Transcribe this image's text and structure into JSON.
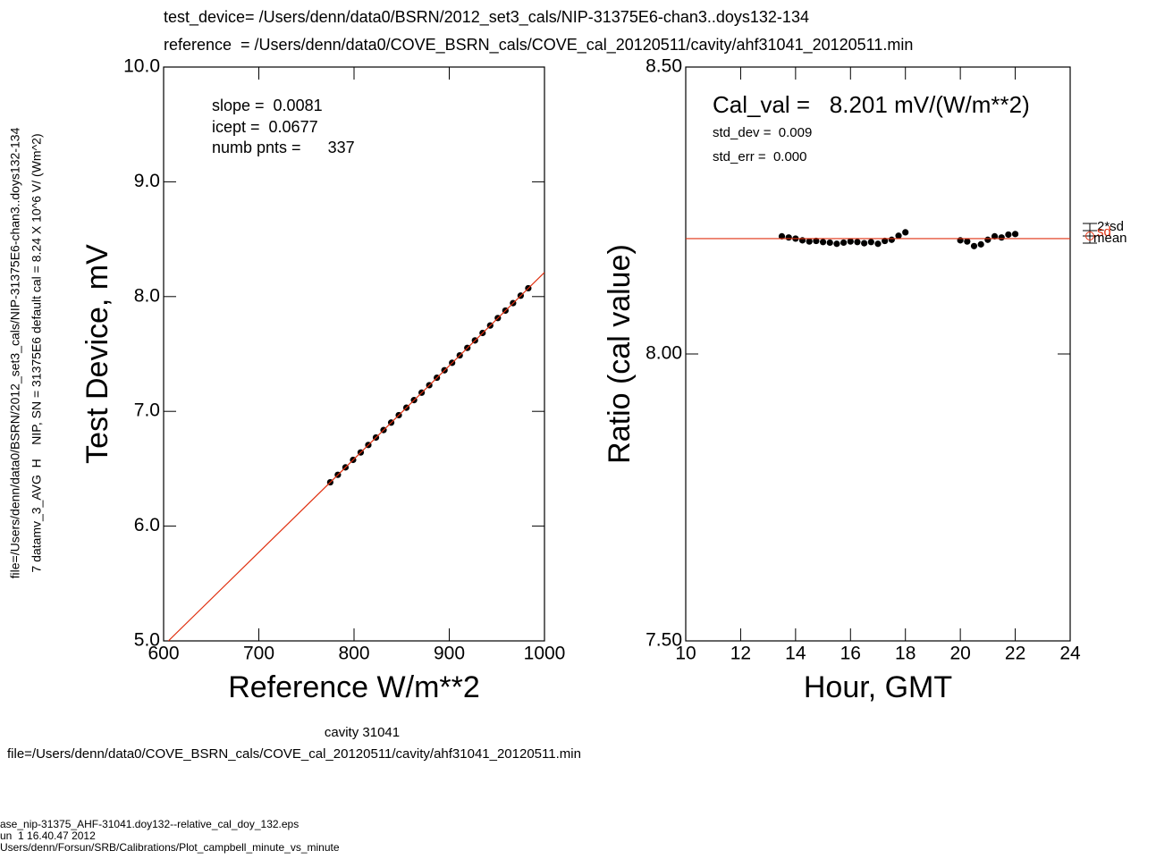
{
  "header": {
    "test_device": "test_device= /Users/denn/data0/BSRN/2012_set3_cals/NIP-31375E6-chan3..doys132-134",
    "reference": "reference  = /Users/denn/data0/COVE_BSRN_cals/COVE_cal_20120511/cavity/ahf31041_20120511.min"
  },
  "side_text": [
    "file=/Users/denn/data0/BSRN/2012_set3_cals/NIP-31375E6-chan3..doys132-134",
    "7 datamv_3_AVG  H    NIP, SN = 31375E6 default cal = 8.24 X 10^6 V/ (Wm^2)"
  ],
  "chart_data": [
    {
      "type": "scatter",
      "xlabel": "Reference W/m**2",
      "ylabel": "Test Device, mV",
      "xlim": [
        600,
        1000
      ],
      "ylim": [
        5,
        10
      ],
      "xticks": [
        600,
        700,
        800,
        900,
        1000
      ],
      "yticks": [
        {
          "value": 5,
          "label": "5.0"
        },
        {
          "value": 6,
          "label": "6.0"
        },
        {
          "value": 7,
          "label": "7.0"
        },
        {
          "value": 8,
          "label": "8.0"
        },
        {
          "value": 9,
          "label": "9.0"
        },
        {
          "value": 10,
          "label": "10.0"
        }
      ],
      "annotations": [
        "slope =  0.0081",
        "icept =  0.0677",
        "numb pnts =      337"
      ],
      "series": [
        {
          "style": "markers",
          "color": "#000000",
          "x": [
            775,
            783,
            791,
            799,
            807,
            815,
            823,
            831,
            839,
            847,
            855,
            863,
            871,
            879,
            887,
            895,
            903,
            911,
            919,
            927,
            935,
            943,
            951,
            959,
            967,
            975,
            983
          ],
          "values": [
            6.382,
            6.447,
            6.512,
            6.577,
            6.642,
            6.707,
            6.772,
            6.837,
            6.902,
            6.967,
            7.032,
            7.098,
            7.163,
            7.228,
            7.293,
            7.358,
            7.423,
            7.488,
            7.553,
            7.618,
            7.683,
            7.748,
            7.813,
            7.878,
            7.943,
            8.008,
            8.073
          ]
        },
        {
          "style": "line",
          "color": "#e03010",
          "x": [
            605,
            1000
          ],
          "values": [
            5.0,
            8.21
          ]
        }
      ]
    },
    {
      "type": "scatter",
      "xlabel": "Hour, GMT",
      "ylabel": "Ratio (cal value)",
      "xlim": [
        10,
        24
      ],
      "ylim": [
        7.5,
        8.5
      ],
      "xticks": [
        10,
        12,
        14,
        16,
        18,
        20,
        22,
        24
      ],
      "yticks": [
        {
          "value": 7.5,
          "label": "7.50"
        },
        {
          "value": 8.0,
          "label": "8.00"
        },
        {
          "value": 8.5,
          "label": "8.50"
        }
      ],
      "annotations": [
        "Cal_val =   8.201 mV/(W/m**2)",
        "std_dev =  0.009",
        "std_err =  0.000"
      ],
      "markers": [
        "2*sd",
        "sd",
        "mean"
      ],
      "series": [
        {
          "style": "markers",
          "color": "#000000",
          "x": [
            13.5,
            13.75,
            14,
            14.25,
            14.5,
            14.75,
            15,
            15.25,
            15.5,
            15.75,
            16,
            16.25,
            16.5,
            16.75,
            17,
            17.25,
            17.5,
            17.75,
            18,
            20,
            20.25,
            20.5,
            20.75,
            21,
            21.25,
            21.5,
            21.75,
            22
          ],
          "values": [
            8.205,
            8.203,
            8.201,
            8.198,
            8.196,
            8.197,
            8.195,
            8.194,
            8.192,
            8.194,
            8.196,
            8.195,
            8.193,
            8.195,
            8.192,
            8.197,
            8.199,
            8.206,
            8.212,
            8.198,
            8.196,
            8.188,
            8.191,
            8.199,
            8.205,
            8.203,
            8.208,
            8.209
          ]
        },
        {
          "style": "line",
          "color": "#e03010",
          "x": [
            10,
            24
          ],
          "values": [
            8.201,
            8.201
          ]
        }
      ]
    }
  ],
  "footer": {
    "caption": "cavity 31041",
    "file": "file=/Users/denn/data0/COVE_BSRN_cals/COVE_cal_20120511/cavity/ahf31041_20120511.min",
    "lines": [
      "ase_nip-31375_AHF-31041.doy132--relative_cal_doy_132.eps",
      "un  1 16.40.47 2012",
      "Users/denn/Forsun/SRB/Calibrations/Plot_campbell_minute_vs_minute"
    ]
  }
}
